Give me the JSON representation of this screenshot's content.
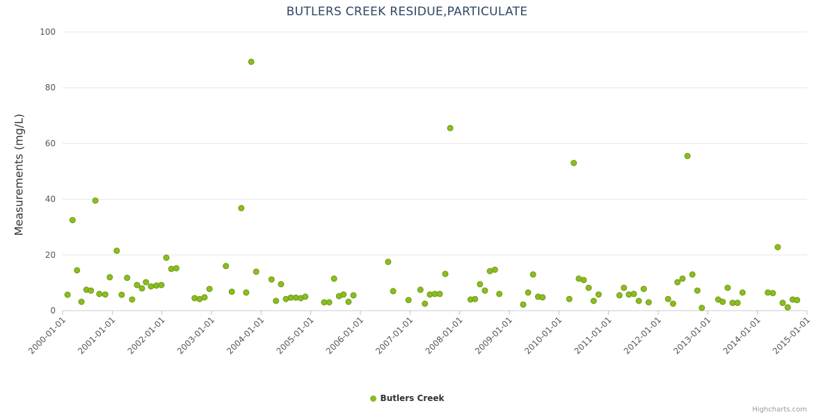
{
  "page": {
    "credits": "Highcharts.com"
  },
  "colors": {
    "series_green": "#8bbc21",
    "series_green_stroke": "#6d9a14",
    "gridline": "#e6e6e6",
    "axis_line": "#cccccc",
    "tick_mark": "#c0c0c0"
  },
  "chart_data": {
    "type": "scatter",
    "title": "BUTLERS CREEK RESIDUE,PARTICULATE",
    "xlabel": "",
    "ylabel": "Measurements (mg/L)",
    "ylim": [
      0,
      100
    ],
    "xlim": [
      2000,
      2015
    ],
    "grid": "horizontal",
    "legend_position": "bottom-center",
    "y_ticks": [
      0,
      20,
      40,
      60,
      80,
      100
    ],
    "x_ticks": [
      2000,
      2001,
      2002,
      2003,
      2004,
      2005,
      2006,
      2007,
      2008,
      2009,
      2010,
      2011,
      2012,
      2013,
      2014,
      2015
    ],
    "x_tick_labels": [
      "2000-01-01",
      "2001-01-01",
      "2002-01-01",
      "2003-01-01",
      "2004-01-01",
      "2005-01-01",
      "2006-01-01",
      "2007-01-01",
      "2008-01-01",
      "2009-01-01",
      "2010-01-01",
      "2011-01-01",
      "2012-01-01",
      "2013-01-01",
      "2014-01-01",
      "2015-01-01"
    ],
    "series": [
      {
        "name": "Butlers Creek",
        "color": "#8bbc21",
        "points": [
          [
            2000.1,
            5.7
          ],
          [
            2000.2,
            32.5
          ],
          [
            2000.29,
            14.5
          ],
          [
            2000.38,
            3.2
          ],
          [
            2000.48,
            7.5
          ],
          [
            2000.57,
            7.2
          ],
          [
            2000.66,
            39.5
          ],
          [
            2000.74,
            6.0
          ],
          [
            2000.86,
            5.8
          ],
          [
            2000.95,
            12.0
          ],
          [
            2001.09,
            21.5
          ],
          [
            2001.19,
            5.7
          ],
          [
            2001.3,
            11.8
          ],
          [
            2001.4,
            4.0
          ],
          [
            2001.5,
            9.2
          ],
          [
            2001.6,
            8.0
          ],
          [
            2001.68,
            10.2
          ],
          [
            2001.78,
            8.7
          ],
          [
            2001.89,
            9.0
          ],
          [
            2001.99,
            9.2
          ],
          [
            2002.09,
            19.0
          ],
          [
            2002.19,
            15.0
          ],
          [
            2002.29,
            15.2
          ],
          [
            2002.66,
            4.5
          ],
          [
            2002.76,
            4.2
          ],
          [
            2002.86,
            4.8
          ],
          [
            2002.96,
            7.8
          ],
          [
            2003.29,
            16.0
          ],
          [
            2003.41,
            6.8
          ],
          [
            2003.6,
            36.8
          ],
          [
            2003.7,
            6.5
          ],
          [
            2003.8,
            89.3
          ],
          [
            2003.9,
            14.0
          ],
          [
            2004.21,
            11.2
          ],
          [
            2004.3,
            3.5
          ],
          [
            2004.4,
            9.5
          ],
          [
            2004.5,
            4.2
          ],
          [
            2004.6,
            4.7
          ],
          [
            2004.7,
            4.7
          ],
          [
            2004.8,
            4.5
          ],
          [
            2004.89,
            5.0
          ],
          [
            2005.27,
            3.0
          ],
          [
            2005.37,
            3.0
          ],
          [
            2005.47,
            11.5
          ],
          [
            2005.57,
            5.2
          ],
          [
            2005.66,
            5.8
          ],
          [
            2005.76,
            3.2
          ],
          [
            2005.86,
            5.5
          ],
          [
            2006.56,
            17.5
          ],
          [
            2006.66,
            7.0
          ],
          [
            2006.97,
            3.8
          ],
          [
            2007.21,
            7.5
          ],
          [
            2007.3,
            2.5
          ],
          [
            2007.4,
            5.8
          ],
          [
            2007.5,
            6.0
          ],
          [
            2007.6,
            6.0
          ],
          [
            2007.71,
            13.2
          ],
          [
            2007.81,
            65.5
          ],
          [
            2008.22,
            4.0
          ],
          [
            2008.31,
            4.2
          ],
          [
            2008.41,
            9.5
          ],
          [
            2008.51,
            7.2
          ],
          [
            2008.61,
            14.2
          ],
          [
            2008.71,
            14.7
          ],
          [
            2008.8,
            6.0
          ],
          [
            2009.28,
            2.2
          ],
          [
            2009.38,
            6.5
          ],
          [
            2009.48,
            13.0
          ],
          [
            2009.58,
            5.0
          ],
          [
            2009.67,
            4.8
          ],
          [
            2010.21,
            4.2
          ],
          [
            2010.3,
            53.0
          ],
          [
            2010.4,
            11.5
          ],
          [
            2010.5,
            11.0
          ],
          [
            2010.6,
            8.2
          ],
          [
            2010.7,
            3.5
          ],
          [
            2010.8,
            5.8
          ],
          [
            2011.22,
            5.5
          ],
          [
            2011.31,
            8.2
          ],
          [
            2011.41,
            5.8
          ],
          [
            2011.51,
            6.0
          ],
          [
            2011.61,
            3.5
          ],
          [
            2011.71,
            7.8
          ],
          [
            2011.81,
            3.0
          ],
          [
            2012.2,
            4.2
          ],
          [
            2012.3,
            2.5
          ],
          [
            2012.39,
            10.2
          ],
          [
            2012.49,
            11.5
          ],
          [
            2012.59,
            55.5
          ],
          [
            2012.69,
            13.0
          ],
          [
            2012.79,
            7.2
          ],
          [
            2012.88,
            1.0
          ],
          [
            2013.21,
            4.0
          ],
          [
            2013.3,
            3.2
          ],
          [
            2013.4,
            8.2
          ],
          [
            2013.5,
            2.8
          ],
          [
            2013.6,
            2.8
          ],
          [
            2013.7,
            6.5
          ],
          [
            2014.21,
            6.5
          ],
          [
            2014.31,
            6.3
          ],
          [
            2014.41,
            22.8
          ],
          [
            2014.51,
            2.8
          ],
          [
            2014.61,
            1.2
          ],
          [
            2014.71,
            4.0
          ],
          [
            2014.8,
            3.8
          ]
        ]
      }
    ]
  }
}
